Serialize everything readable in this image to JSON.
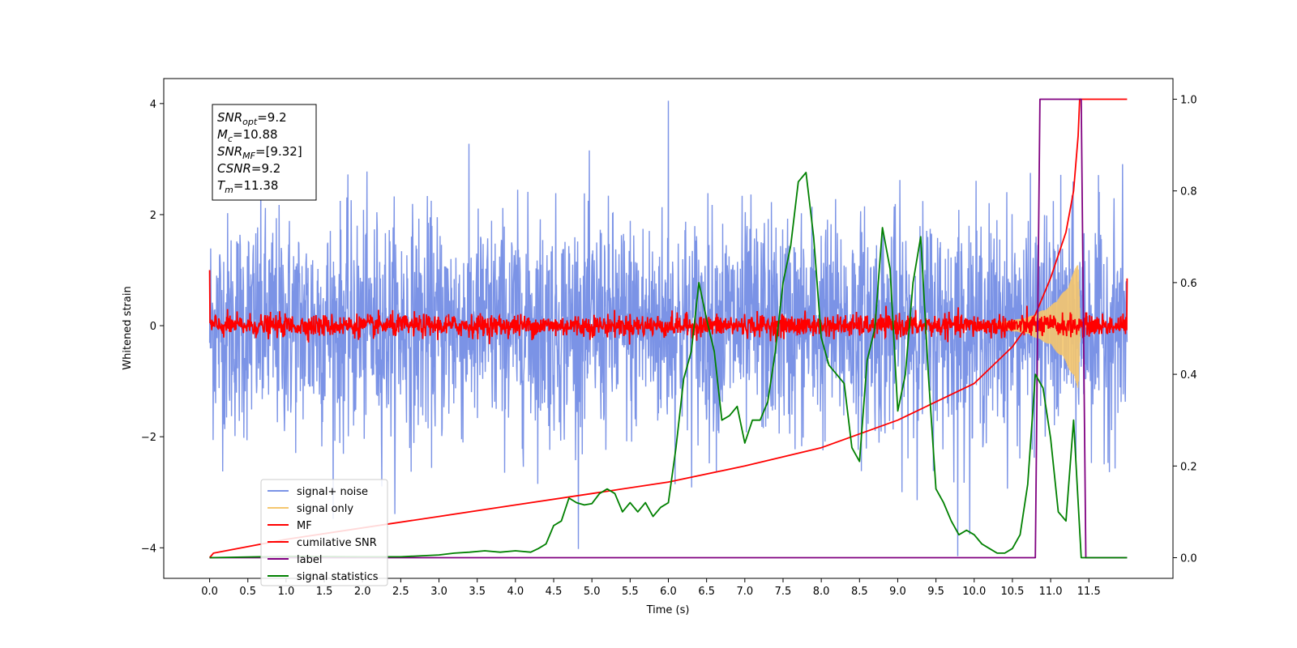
{
  "chart_data": {
    "type": "line",
    "xlabel": "Time (s)",
    "ylabel": "Whitened strain",
    "xlim": [
      -0.6,
      12.6
    ],
    "ylim": [
      -4.55,
      4.45
    ],
    "y2lim": [
      -0.045,
      1.045
    ],
    "x_ticks": [
      "0.0",
      "0.5",
      "1.0",
      "1.5",
      "2.0",
      "2.5",
      "3.0",
      "3.5",
      "4.0",
      "4.5",
      "5.0",
      "5.5",
      "6.0",
      "6.5",
      "7.0",
      "7.5",
      "8.0",
      "8.5",
      "9.0",
      "9.5",
      "10.0",
      "10.5",
      "11.0",
      "11.5"
    ],
    "y_ticks": [
      "4",
      "2",
      "0",
      "−2",
      "−4"
    ],
    "y2_ticks": [
      "1.0",
      "0.8",
      "0.6",
      "0.4",
      "0.2",
      "0.0"
    ],
    "annotation": {
      "lines": [
        {
          "sym": "SNR",
          "sub": "opt",
          "val": "=9.2"
        },
        {
          "sym": "M",
          "sub": "c",
          "val": "=10.88"
        },
        {
          "sym": "SNR",
          "sub": "MF",
          "val": "=[9.32]"
        },
        {
          "sym": "CSNR",
          "sub": "",
          "val": "=9.2"
        },
        {
          "sym": "T",
          "sub": "m",
          "val": "=11.38"
        }
      ]
    },
    "legend": {
      "placement": "lower-left",
      "entries": [
        {
          "label": "signal+ noise",
          "color": "#7b93e6"
        },
        {
          "label": "signal only",
          "color": "#f5c66e"
        },
        {
          "label": "MF",
          "color": "#ff0000"
        },
        {
          "label": "cumilative SNR",
          "color": "#ff0000"
        },
        {
          "label": "label",
          "color": "#800080"
        },
        {
          "label": "signal statistics",
          "color": "#008000"
        }
      ]
    },
    "series": [
      {
        "name": "signal+ noise",
        "axis": "left",
        "color": "#7b93e6",
        "kind": "noise",
        "x_range": [
          0,
          12
        ],
        "amplitude": 1.0,
        "peak_max": 4.05,
        "peak_min": -4.15
      },
      {
        "name": "signal only",
        "axis": "left",
        "color": "#f5c66e",
        "kind": "chirp",
        "x_range": [
          10.3,
          11.38
        ],
        "envelope": [
          [
            10.3,
            0.05
          ],
          [
            10.7,
            0.15
          ],
          [
            11.0,
            0.35
          ],
          [
            11.2,
            0.65
          ],
          [
            11.3,
            0.95
          ],
          [
            11.36,
            1.15
          ],
          [
            11.38,
            0.3
          ]
        ]
      },
      {
        "name": "MF",
        "axis": "left",
        "color": "#ff0000",
        "kind": "noise",
        "x_range": [
          0,
          12
        ],
        "amplitude": 0.1,
        "edge_start": 1.0,
        "edge_end": 0.85
      },
      {
        "name": "cumilative SNR",
        "axis": "right",
        "color": "#ff0000",
        "x": [
          0,
          0.05,
          1.0,
          2.0,
          3.0,
          4.0,
          5.0,
          6.0,
          7.0,
          8.0,
          9.0,
          9.5,
          10.0,
          10.5,
          10.8,
          11.0,
          11.2,
          11.3,
          11.36,
          11.38,
          12.0
        ],
        "y": [
          0.0,
          0.01,
          0.04,
          0.065,
          0.09,
          0.115,
          0.14,
          0.165,
          0.2,
          0.24,
          0.3,
          0.34,
          0.38,
          0.46,
          0.53,
          0.61,
          0.71,
          0.8,
          0.92,
          1.0,
          1.0
        ]
      },
      {
        "name": "label",
        "axis": "right",
        "color": "#800080",
        "x": [
          0,
          10.8,
          10.86,
          11.4,
          11.46,
          12.0
        ],
        "y": [
          0.0,
          0.0,
          1.0,
          1.0,
          0.0,
          0.0
        ]
      },
      {
        "name": "signal statistics",
        "axis": "right",
        "color": "#008000",
        "x": [
          0,
          1,
          2,
          2.5,
          3.0,
          3.2,
          3.4,
          3.6,
          3.8,
          4.0,
          4.2,
          4.3,
          4.4,
          4.5,
          4.6,
          4.7,
          4.8,
          4.9,
          5.0,
          5.1,
          5.2,
          5.3,
          5.4,
          5.5,
          5.6,
          5.7,
          5.8,
          5.9,
          6.0,
          6.1,
          6.2,
          6.3,
          6.4,
          6.5,
          6.6,
          6.7,
          6.8,
          6.9,
          7.0,
          7.1,
          7.2,
          7.3,
          7.4,
          7.5,
          7.6,
          7.7,
          7.8,
          7.9,
          8.0,
          8.1,
          8.2,
          8.3,
          8.4,
          8.5,
          8.6,
          8.7,
          8.8,
          8.9,
          9.0,
          9.1,
          9.2,
          9.3,
          9.4,
          9.5,
          9.6,
          9.7,
          9.8,
          9.9,
          10.0,
          10.1,
          10.2,
          10.3,
          10.4,
          10.5,
          10.6,
          10.7,
          10.8,
          10.9,
          11.0,
          11.1,
          11.2,
          11.3,
          11.4,
          11.5,
          12.0
        ],
        "y": [
          0.0,
          0.003,
          0.002,
          0.002,
          0.006,
          0.01,
          0.012,
          0.015,
          0.012,
          0.015,
          0.012,
          0.02,
          0.03,
          0.07,
          0.08,
          0.13,
          0.12,
          0.115,
          0.118,
          0.14,
          0.15,
          0.14,
          0.1,
          0.12,
          0.1,
          0.12,
          0.09,
          0.11,
          0.12,
          0.24,
          0.39,
          0.45,
          0.6,
          0.52,
          0.45,
          0.3,
          0.31,
          0.33,
          0.25,
          0.3,
          0.3,
          0.34,
          0.45,
          0.6,
          0.68,
          0.82,
          0.84,
          0.7,
          0.48,
          0.42,
          0.4,
          0.38,
          0.24,
          0.21,
          0.43,
          0.5,
          0.72,
          0.63,
          0.32,
          0.4,
          0.6,
          0.7,
          0.4,
          0.15,
          0.12,
          0.08,
          0.05,
          0.06,
          0.05,
          0.03,
          0.02,
          0.01,
          0.01,
          0.02,
          0.05,
          0.16,
          0.4,
          0.37,
          0.26,
          0.1,
          0.08,
          0.3,
          0.0,
          0.0,
          0.0
        ]
      }
    ]
  }
}
